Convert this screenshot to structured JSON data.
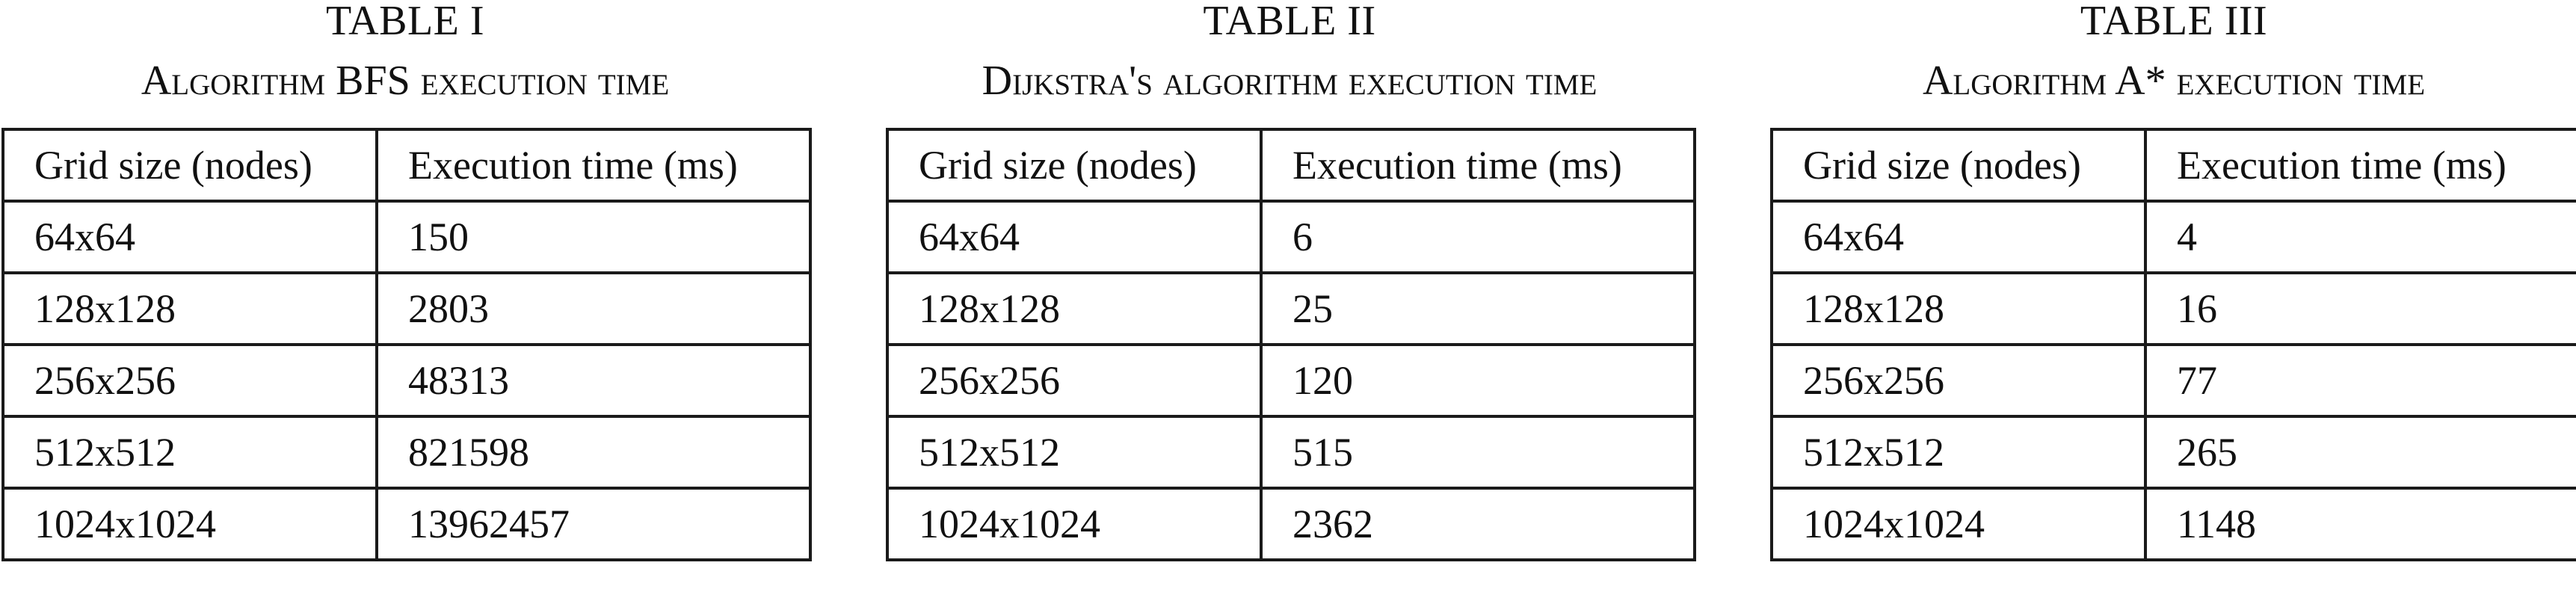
{
  "tables": [
    {
      "number": "TABLE I",
      "caption": "Algorithm BFS execution time",
      "headers": [
        "Grid size (nodes)",
        "Execution time (ms)"
      ],
      "rows": [
        [
          "64x64",
          "150"
        ],
        [
          "128x128",
          "2803"
        ],
        [
          "256x256",
          "48313"
        ],
        [
          "512x512",
          "821598"
        ],
        [
          "1024x1024",
          "13962457"
        ]
      ]
    },
    {
      "number": "TABLE II",
      "caption": "Dijkstra's algorithm execution time",
      "headers": [
        "Grid size (nodes)",
        "Execution time (ms)"
      ],
      "rows": [
        [
          "64x64",
          "6"
        ],
        [
          "128x128",
          "25"
        ],
        [
          "256x256",
          "120"
        ],
        [
          "512x512",
          "515"
        ],
        [
          "1024x1024",
          "2362"
        ]
      ]
    },
    {
      "number": "TABLE III",
      "caption": "Algorithm A* execution time",
      "headers": [
        "Grid size (nodes)",
        "Execution time (ms)"
      ],
      "rows": [
        [
          "64x64",
          "4"
        ],
        [
          "128x128",
          "16"
        ],
        [
          "256x256",
          "77"
        ],
        [
          "512x512",
          "265"
        ],
        [
          "1024x1024",
          "1148"
        ]
      ]
    }
  ]
}
